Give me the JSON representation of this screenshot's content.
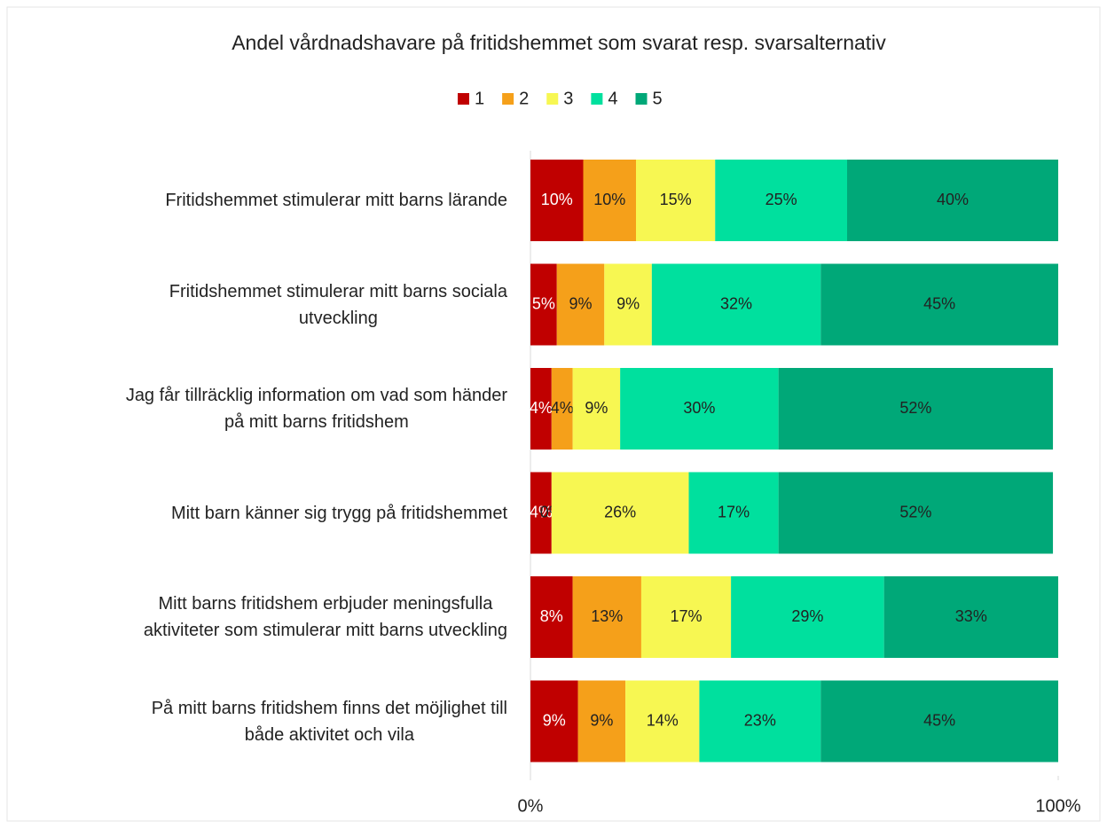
{
  "chart_data": {
    "type": "stacked_barh",
    "title": "Andel vårdnadshavare på fritidshemmet som svarat resp. svarsalternativ",
    "categories": [
      "Fritidshemmet stimulerar mitt barns lärande",
      "Fritidshemmet stimulerar mitt barns sociala\nutveckling",
      "Jag får tillräcklig information om vad som händer\npå mitt barns fritidshem",
      "Mitt barn känner sig trygg på fritidshemmet",
      "Mitt barns fritidshem erbjuder meningsfulla\naktiviteter som stimulerar mitt barns utveckling",
      "På mitt barns fritidshem finns det möjlighet till\nbåde aktivitet och vila"
    ],
    "series": [
      {
        "name": "1",
        "color": "#c00000",
        "label_color": "#ffffff",
        "values": [
          10,
          5,
          4,
          4,
          8,
          9
        ],
        "value_labels": [
          "10%",
          "5%",
          "4%",
          "4%",
          "8%",
          "9%"
        ]
      },
      {
        "name": "2",
        "color": "#f5a01a",
        "label_color": "#222222",
        "values": [
          10,
          9,
          4,
          0,
          13,
          9
        ],
        "value_labels": [
          "10%",
          "9%",
          "4%",
          "0%",
          "13%",
          "9%"
        ]
      },
      {
        "name": "3",
        "color": "#f7f752",
        "label_color": "#222222",
        "values": [
          15,
          9,
          9,
          26,
          17,
          14
        ],
        "value_labels": [
          "15%",
          "9%",
          "9%",
          "26%",
          "17%",
          "14%"
        ]
      },
      {
        "name": "4",
        "color": "#00e09e",
        "label_color": "#222222",
        "values": [
          25,
          32,
          30,
          17,
          29,
          23
        ],
        "value_labels": [
          "25%",
          "32%",
          "30%",
          "17%",
          "29%",
          "23%"
        ]
      },
      {
        "name": "5",
        "color": "#00a878",
        "label_color": "#222222",
        "values": [
          40,
          45,
          52,
          52,
          33,
          45
        ],
        "value_labels": [
          "40%",
          "45%",
          "52%",
          "52%",
          "33%",
          "45%"
        ]
      }
    ],
    "xlim": [
      0,
      100
    ],
    "xticks": [
      {
        "value": 0,
        "label": "0%"
      },
      {
        "value": 100,
        "label": "100%"
      }
    ],
    "legend": "top"
  }
}
